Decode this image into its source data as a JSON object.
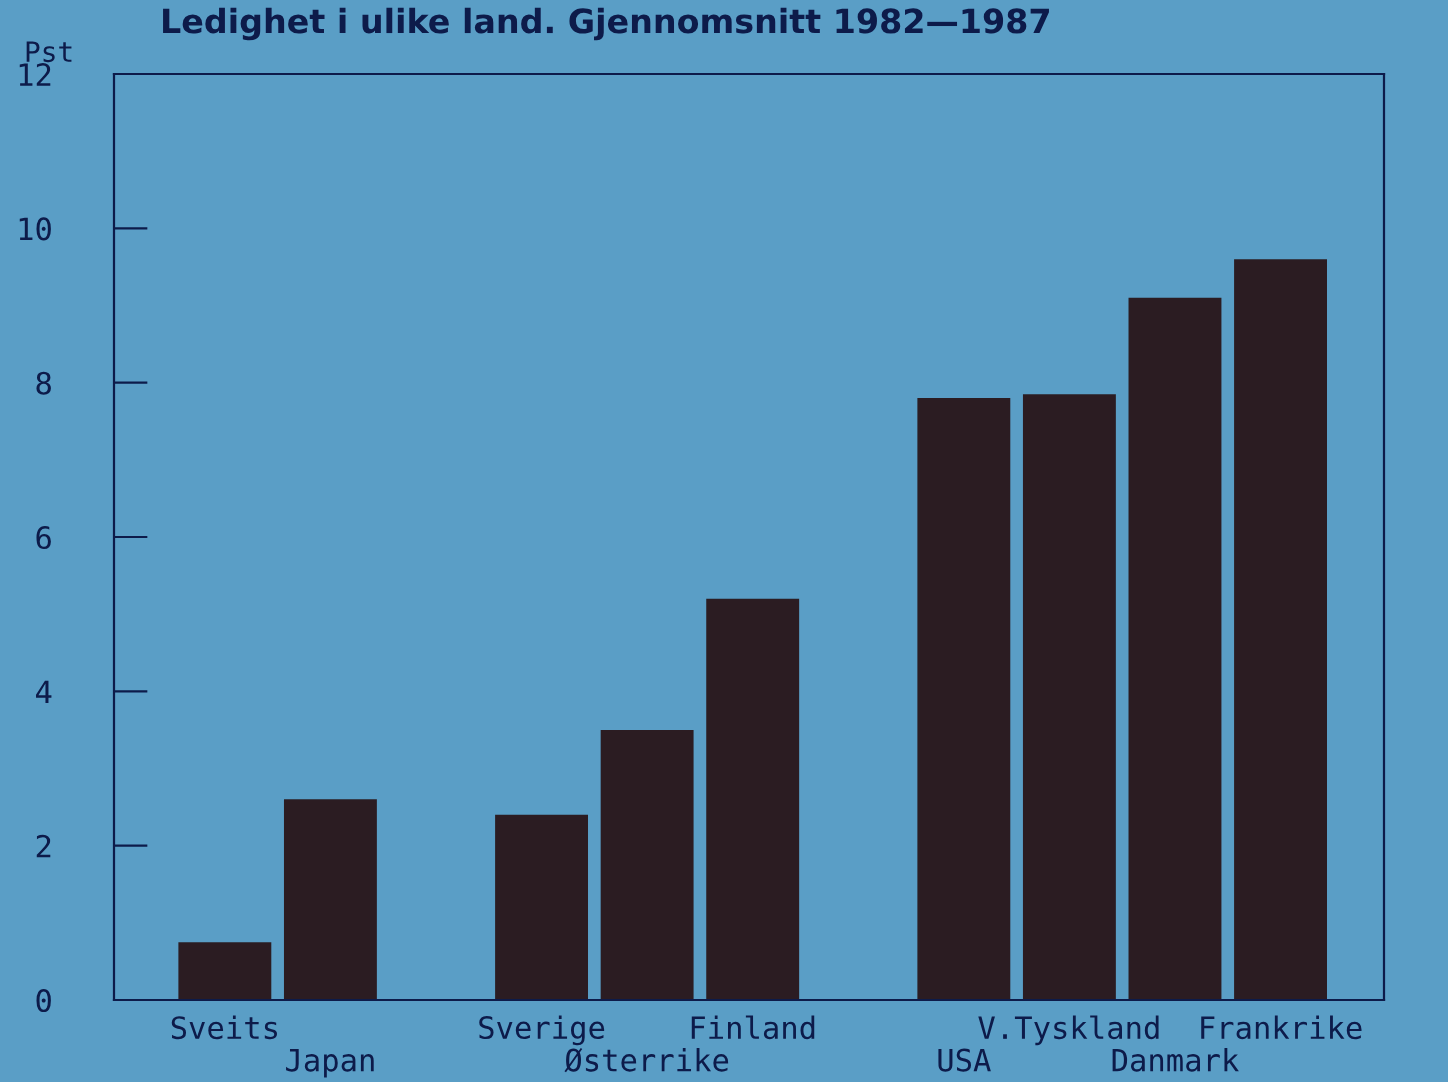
{
  "chart_data": {
    "type": "bar",
    "title": "Ledighet i ulike land. Gjennomsnitt 1982—1987",
    "ylabel": "Pst",
    "categories": [
      "Sveits",
      "Japan",
      null,
      "Sverige",
      "Østerrike",
      "Finland",
      null,
      "USA",
      "V.Tyskland",
      "Danmark",
      "Frankrike"
    ],
    "values": [
      0.75,
      2.6,
      null,
      2.4,
      3.5,
      5.2,
      null,
      7.8,
      7.85,
      9.1,
      9.6
    ],
    "color": "#2b1c22",
    "ylim": [
      0,
      12
    ],
    "yticks": [
      0,
      2,
      4,
      6,
      8,
      10,
      12
    ],
    "grid": false,
    "legend": false
  }
}
